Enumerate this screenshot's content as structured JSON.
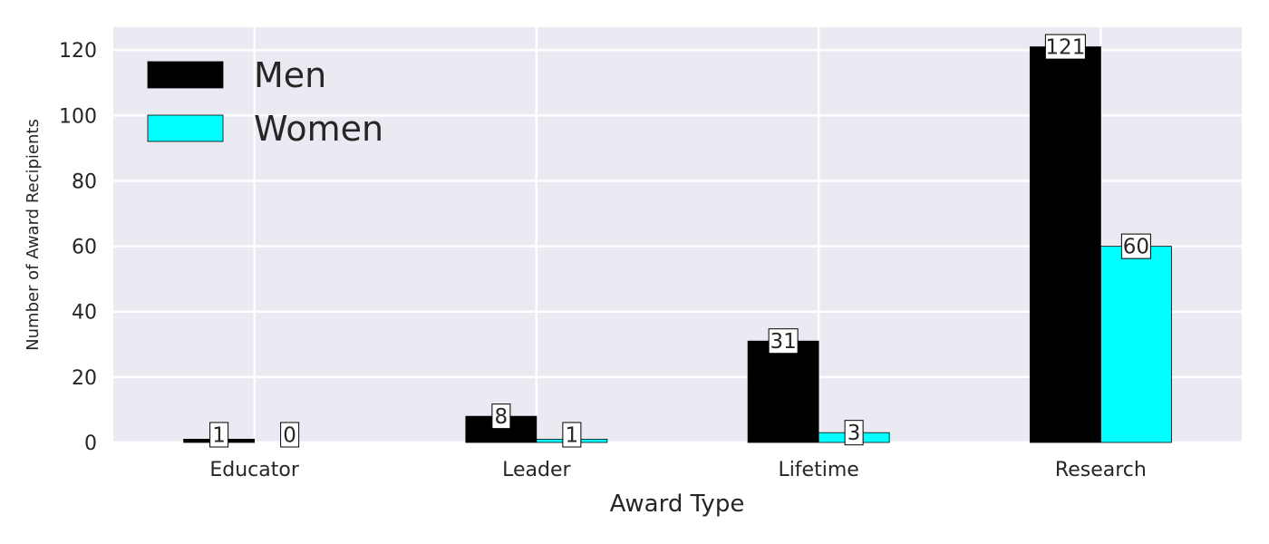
{
  "chart_data": {
    "type": "bar",
    "categories": [
      "Educator",
      "Leader",
      "Lifetime",
      "Research"
    ],
    "series": [
      {
        "name": "Men",
        "values": [
          1,
          8,
          31,
          121
        ],
        "color": "#000000"
      },
      {
        "name": "Women",
        "values": [
          0,
          1,
          3,
          60
        ],
        "color": "#00ffff"
      }
    ],
    "xlabel": "Award Type",
    "ylabel": "Number of Award Recipients",
    "ylim": [
      0,
      127
    ],
    "yticks": [
      0,
      20,
      40,
      60,
      80,
      100,
      120
    ],
    "grid": true,
    "legend_position": "top-left",
    "plot_background": "#eaeaf2"
  }
}
